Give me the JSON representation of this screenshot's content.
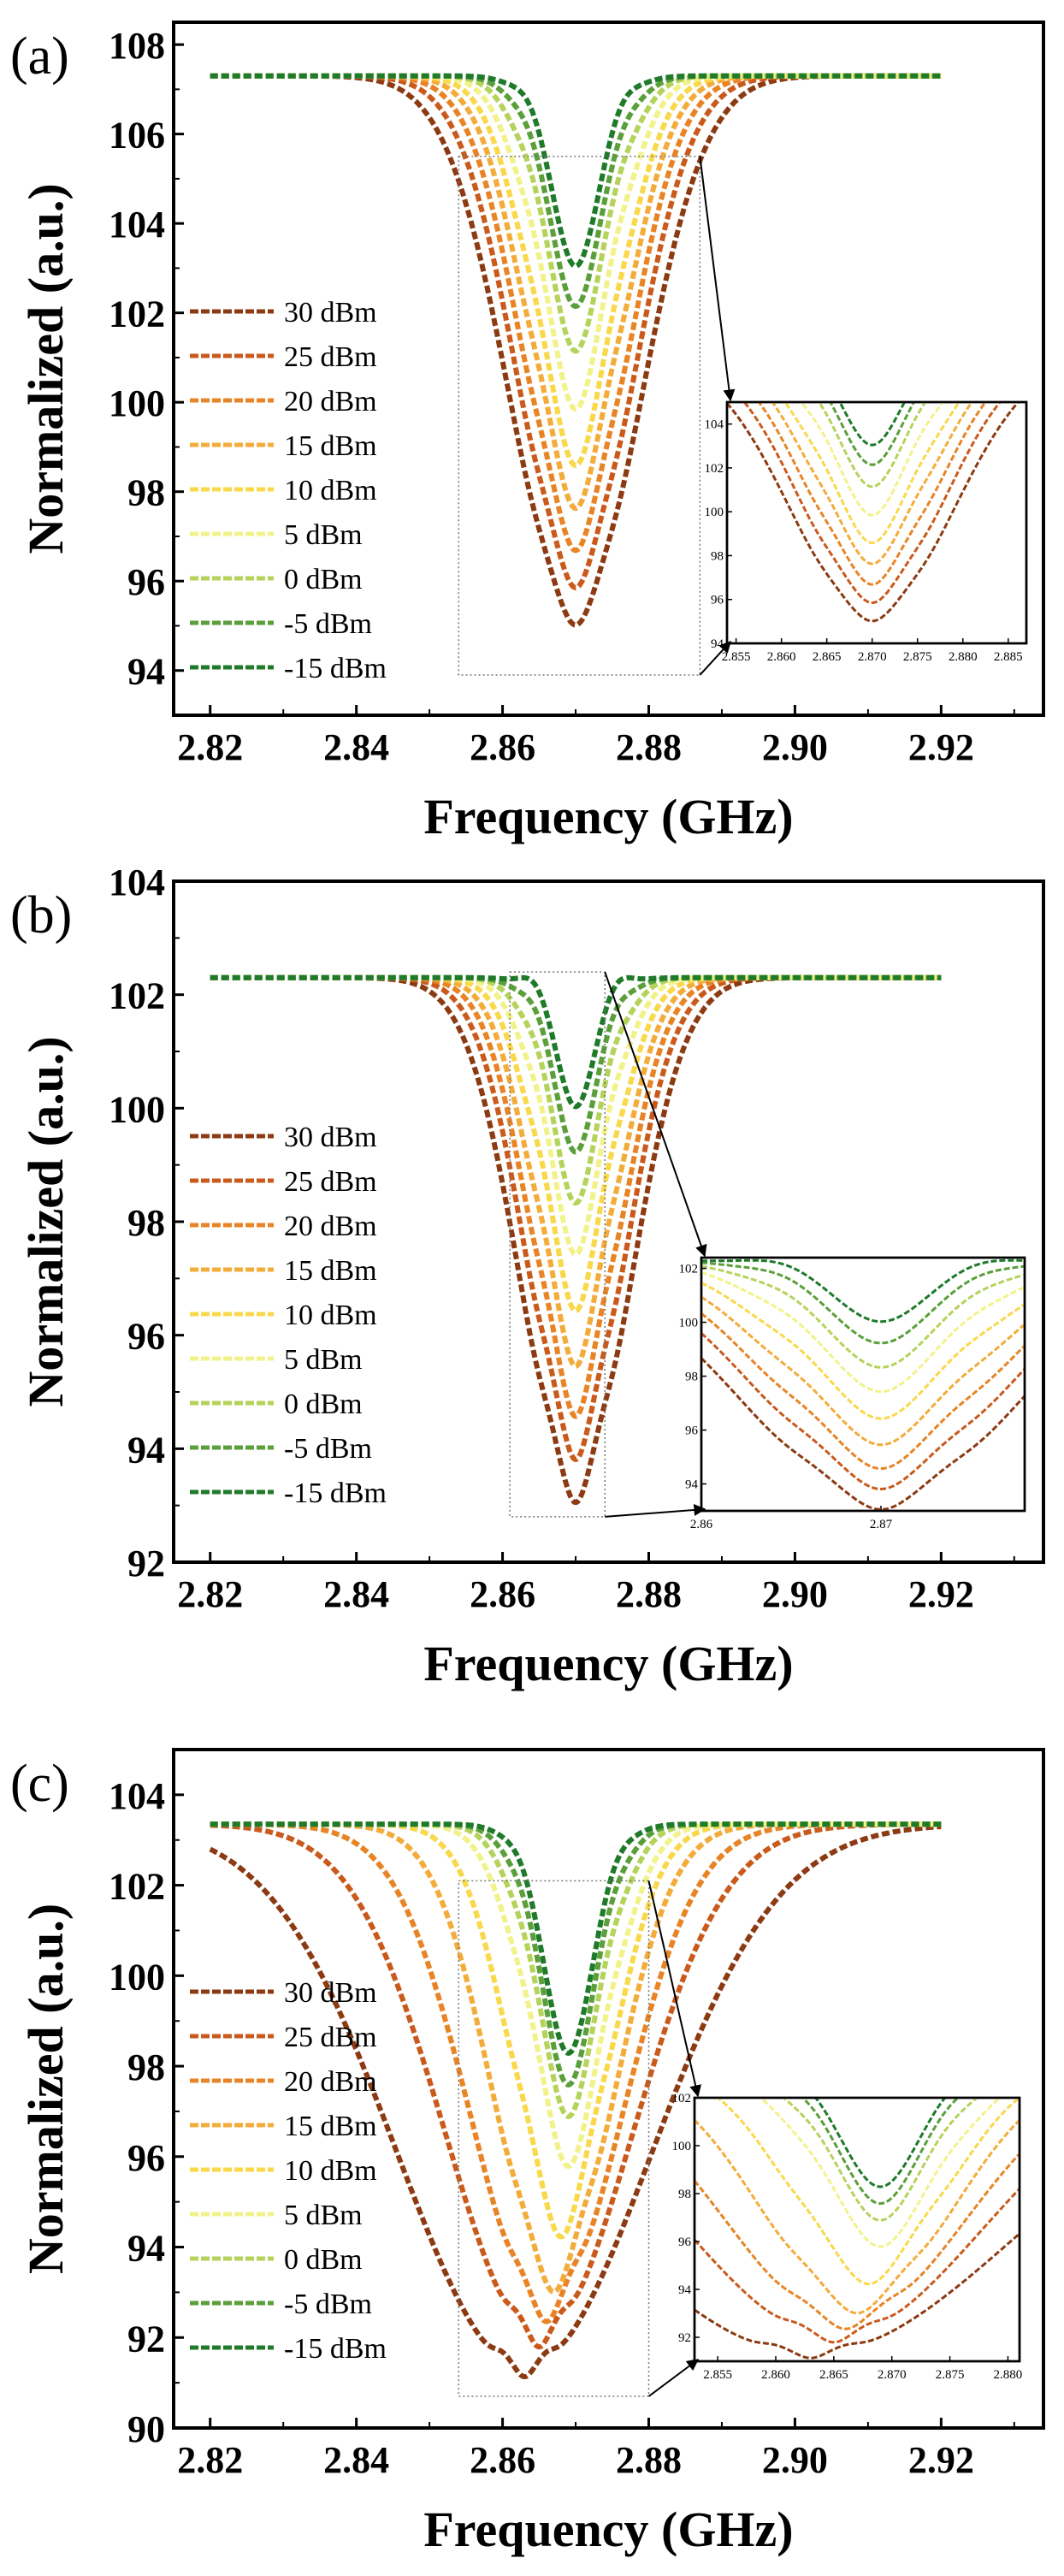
{
  "figure": {
    "xlabel": "Frequency (GHz)",
    "ylabel": "Normalized (a.u.)"
  },
  "legend_labels": [
    "30 dBm",
    "25 dBm",
    "20 dBm",
    "15 dBm",
    "10 dBm",
    "5 dBm",
    "0 dBm",
    "-5 dBm",
    "-15 dBm"
  ],
  "series_colors": [
    "#8c3a12",
    "#c95a1c",
    "#e88425",
    "#f3ac3a",
    "#f9d84a",
    "#f2f28a",
    "#b5d35a",
    "#5a9f3a",
    "#1f7a2a"
  ],
  "chart_data": [
    {
      "panel_label": "(a)",
      "type": "line",
      "xlabel": "Frequency (GHz)",
      "ylabel": "Normalized (a.u.)",
      "xlim": [
        2.815,
        2.934
      ],
      "ylim": [
        93,
        108.5
      ],
      "xticks": [
        2.82,
        2.84,
        2.86,
        2.88,
        2.9,
        2.92
      ],
      "xtick_labels": [
        "2.82",
        "2.84",
        "2.86",
        "2.88",
        "2.90",
        "2.92"
      ],
      "yticks": [
        94,
        96,
        98,
        100,
        102,
        104,
        106,
        108
      ],
      "ytick_labels": [
        "94",
        "96",
        "98",
        "100",
        "102",
        "104",
        "106",
        "108"
      ],
      "x_range": [
        2.82,
        2.92
      ],
      "center": 2.87,
      "baseline": 107.3,
      "legend_position": "left",
      "series": [
        {
          "name": "30 dBm",
          "min": 95.2,
          "width": 0.0125,
          "split": 0.004,
          "ripple": 0.22
        },
        {
          "name": "25 dBm",
          "min": 96.1,
          "width": 0.0112,
          "split": 0.004,
          "ripple": 0.3
        },
        {
          "name": "20 dBm",
          "min": 97.0,
          "width": 0.0102,
          "split": 0.0042,
          "ripple": 0.38
        },
        {
          "name": "15 dBm",
          "min": 98.0,
          "width": 0.0093,
          "split": 0.0045,
          "ripple": 0.45
        },
        {
          "name": "10 dBm",
          "min": 99.0,
          "width": 0.0085,
          "split": 0.0048,
          "ripple": 0.5
        },
        {
          "name": "5 dBm",
          "min": 100.3,
          "width": 0.0077,
          "split": 0.005,
          "ripple": 0.55
        },
        {
          "name": "0 dBm",
          "min": 101.6,
          "width": 0.007,
          "split": 0.0052,
          "ripple": 0.55
        },
        {
          "name": "-5 dBm",
          "min": 102.6,
          "width": 0.0064,
          "split": 0.0054,
          "ripple": 0.55
        },
        {
          "name": "-15 dBm",
          "min": 103.5,
          "width": 0.0058,
          "split": 0.0055,
          "ripple": 0.55
        }
      ],
      "inset": {
        "xlim": [
          2.854,
          2.887
        ],
        "ylim": [
          94,
          105
        ],
        "xticks": [
          2.855,
          2.86,
          2.865,
          2.87,
          2.875,
          2.88,
          2.885
        ],
        "xtick_labels": [
          "2.855",
          "2.860",
          "2.865",
          "2.870",
          "2.875",
          "2.880",
          "2.885"
        ],
        "yticks": [
          94,
          96,
          98,
          100,
          102,
          104
        ],
        "ytick_labels": [
          "94",
          "96",
          "98",
          "100",
          "102",
          "104"
        ],
        "zoom_region": {
          "x": [
            2.854,
            2.887
          ],
          "y": [
            93.9,
            105.5
          ]
        }
      }
    },
    {
      "panel_label": "(b)",
      "type": "line",
      "xlabel": "Frequency (GHz)",
      "ylabel": "Normalized (a.u.)",
      "xlim": [
        2.815,
        2.934
      ],
      "ylim": [
        92,
        104
      ],
      "xticks": [
        2.82,
        2.84,
        2.86,
        2.88,
        2.9,
        2.92
      ],
      "xtick_labels": [
        "2.82",
        "2.84",
        "2.86",
        "2.88",
        "2.90",
        "2.92"
      ],
      "yticks": [
        92,
        94,
        96,
        98,
        100,
        102,
        104
      ],
      "ytick_labels": [
        "92",
        "94",
        "96",
        "98",
        "100",
        "102",
        "104"
      ],
      "x_range": [
        2.82,
        2.92
      ],
      "center": 2.87,
      "baseline": 102.3,
      "legend_position": "left",
      "series": [
        {
          "name": "30 dBm",
          "min": 93.3,
          "width": 0.0105,
          "split": 0.0035,
          "ripple": 0.3
        },
        {
          "name": "25 dBm",
          "min": 94.1,
          "width": 0.0095,
          "split": 0.0036,
          "ripple": 0.35
        },
        {
          "name": "20 dBm",
          "min": 94.9,
          "width": 0.0087,
          "split": 0.0038,
          "ripple": 0.4
        },
        {
          "name": "15 dBm",
          "min": 95.8,
          "width": 0.008,
          "split": 0.004,
          "ripple": 0.42
        },
        {
          "name": "10 dBm",
          "min": 96.8,
          "width": 0.0073,
          "split": 0.0042,
          "ripple": 0.45
        },
        {
          "name": "5 dBm",
          "min": 97.8,
          "width": 0.0066,
          "split": 0.0044,
          "ripple": 0.45
        },
        {
          "name": "0 dBm",
          "min": 98.7,
          "width": 0.006,
          "split": 0.0046,
          "ripple": 0.45
        },
        {
          "name": "-5 dBm",
          "min": 99.6,
          "width": 0.0055,
          "split": 0.0048,
          "ripple": 0.45
        },
        {
          "name": "-15 dBm",
          "min": 100.4,
          "width": 0.005,
          "split": 0.005,
          "ripple": 0.45
        }
      ],
      "inset": {
        "xlim": [
          2.86,
          2.878
        ],
        "ylim": [
          93,
          102.4
        ],
        "xticks": [
          2.86,
          2.87
        ],
        "xtick_labels": [
          "2.86",
          "2.87"
        ],
        "yticks": [
          94,
          96,
          98,
          100,
          102
        ],
        "ytick_labels": [
          "94",
          "96",
          "98",
          "100",
          "102"
        ],
        "zoom_region": {
          "x": [
            2.861,
            2.874
          ],
          "y": [
            92.8,
            102.4
          ]
        }
      }
    },
    {
      "panel_label": "(c)",
      "type": "line",
      "xlabel": "Frequency (GHz)",
      "ylabel": "Normalized (a.u.)",
      "xlim": [
        2.815,
        2.934
      ],
      "ylim": [
        90,
        105
      ],
      "xticks": [
        2.82,
        2.84,
        2.86,
        2.88,
        2.9,
        2.92
      ],
      "xtick_labels": [
        "2.82",
        "2.84",
        "2.86",
        "2.88",
        "2.90",
        "2.92"
      ],
      "yticks": [
        90,
        92,
        94,
        96,
        98,
        100,
        102,
        104
      ],
      "ytick_labels": [
        "90",
        "92",
        "94",
        "96",
        "98",
        "100",
        "102",
        "104"
      ],
      "x_range": [
        2.82,
        2.92
      ],
      "center": 2.868,
      "baseline": 103.35,
      "legend_position": "left",
      "series": [
        {
          "name": "30 dBm",
          "min": 91.3,
          "width": 0.0245,
          "split": 0.003,
          "ripple": 0.2,
          "shift": -0.005
        },
        {
          "name": "25 dBm",
          "min": 92.0,
          "width": 0.018,
          "split": 0.003,
          "ripple": 0.25,
          "shift": -0.003
        },
        {
          "name": "20 dBm",
          "min": 92.6,
          "width": 0.0145,
          "split": 0.0035,
          "ripple": 0.3,
          "shift": -0.002
        },
        {
          "name": "15 dBm",
          "min": 93.3,
          "width": 0.0115,
          "split": 0.004,
          "ripple": 0.35,
          "shift": -0.001
        },
        {
          "name": "10 dBm",
          "min": 94.6,
          "width": 0.0095,
          "split": 0.0045,
          "ripple": 0.45,
          "shift": 0.0
        },
        {
          "name": "5 dBm",
          "min": 96.2,
          "width": 0.008,
          "split": 0.005,
          "ripple": 0.5,
          "shift": 0.001
        },
        {
          "name": "0 dBm",
          "min": 97.3,
          "width": 0.007,
          "split": 0.005,
          "ripple": 0.5,
          "shift": 0.001
        },
        {
          "name": "-5 dBm",
          "min": 98.0,
          "width": 0.0063,
          "split": 0.0052,
          "ripple": 0.5,
          "shift": 0.001
        },
        {
          "name": "-15 dBm",
          "min": 98.7,
          "width": 0.0058,
          "split": 0.0055,
          "ripple": 0.5,
          "shift": 0.001
        }
      ],
      "inset": {
        "xlim": [
          2.853,
          2.881
        ],
        "ylim": [
          91,
          102
        ],
        "xticks": [
          2.855,
          2.86,
          2.865,
          2.87,
          2.875,
          2.88
        ],
        "xtick_labels": [
          "2.855",
          "2.860",
          "2.865",
          "2.870",
          "2.875",
          "2.880"
        ],
        "yticks": [
          92,
          94,
          96,
          98,
          100,
          102
        ],
        "ytick_labels": [
          "92",
          "94",
          "96",
          "98",
          "100",
          "102"
        ],
        "zoom_region": {
          "x": [
            2.854,
            2.88
          ],
          "y": [
            90.7,
            102.1
          ]
        }
      }
    }
  ]
}
